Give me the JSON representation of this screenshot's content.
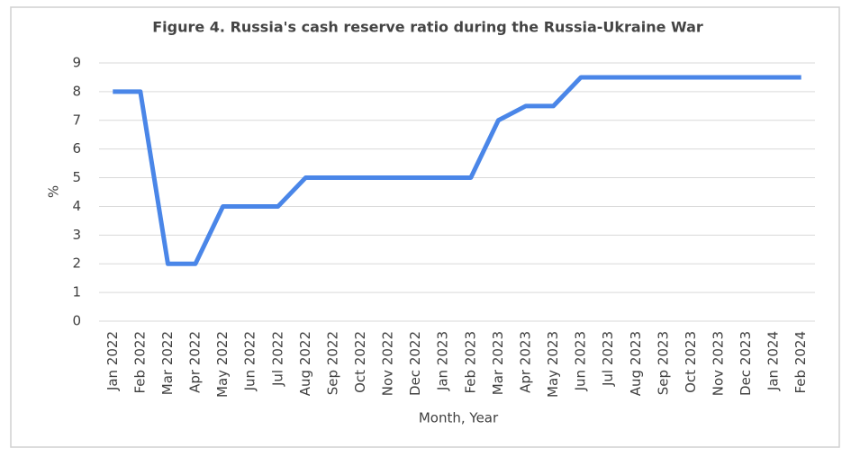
{
  "chart_data": {
    "type": "line",
    "title": "Figure 4. Russia's cash reserve ratio during the Russia-Ukraine  War",
    "x_label": "Month,  Year",
    "y_label": "%",
    "categories": [
      "Jan 2022",
      "Feb 2022",
      "Mar 2022",
      "Apr 2022",
      "May 2022",
      "Jun 2022",
      "Jul 2022",
      "Aug 2022",
      "Sep 2022",
      "Oct 2022",
      "Nov 2022",
      "Dec 2022",
      "Jan 2023",
      "Feb 2023",
      "Mar 2023",
      "Apr 2023",
      "May 2023",
      "Jun 2023",
      "Jul 2023",
      "Aug 2023",
      "Sep 2023",
      "Oct 2023",
      "Nov 2023",
      "Dec 2023",
      "Jan 2024",
      "Feb 2024"
    ],
    "values": [
      8,
      8,
      2,
      2,
      4,
      4,
      4,
      5,
      5,
      5,
      5,
      5,
      5,
      5,
      7,
      7.5,
      7.5,
      8.5,
      8.5,
      8.5,
      8.5,
      8.5,
      8.5,
      8.5,
      8.5,
      8.5
    ],
    "color": "#4a86e8",
    "ylim": [
      0,
      9
    ],
    "yticks": [
      0,
      1,
      2,
      3,
      4,
      5,
      6,
      7,
      8,
      9
    ],
    "grid": true
  }
}
